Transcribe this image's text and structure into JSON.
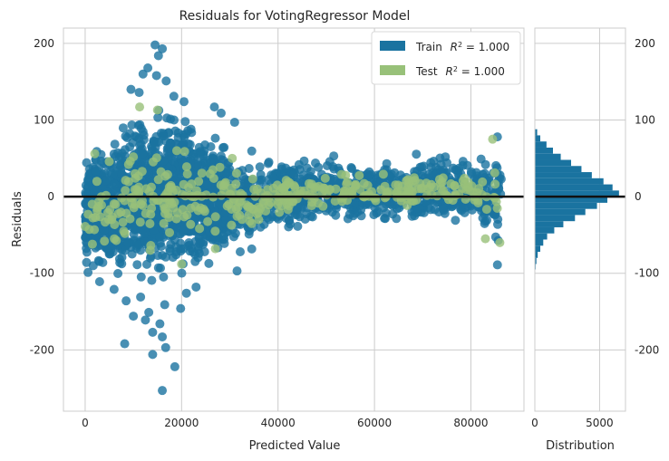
{
  "chart_data": {
    "type": "scatter",
    "title": "Residuals for VotingRegressor Model",
    "xlabel": "Predicted Value",
    "ylabel": "Residuals",
    "xlim": [
      -4500,
      91000
    ],
    "ylim": [
      -280,
      220
    ],
    "xticks": [
      0,
      20000,
      40000,
      60000,
      80000
    ],
    "xtick_labels": [
      "0",
      "20000",
      "40000",
      "60000",
      "80000"
    ],
    "yticks": [
      200,
      100,
      0,
      -100,
      -200
    ],
    "ytick_labels": [
      "200",
      "100",
      "0",
      "-100",
      "-200"
    ],
    "grid": true,
    "legend_position": "top-right",
    "zero_line": 0,
    "colors": {
      "train": "#1a73a0",
      "test": "#98c179",
      "zero_line": "#111111",
      "grid": "#cccccc"
    },
    "legend": [
      {
        "label": "Train",
        "r2_label": "R",
        "r2_sup": "2",
        "r2_value": " = 1.000",
        "color": "#1a73a0"
      },
      {
        "label": "Test",
        "r2_label": "R",
        "r2_sup": "2",
        "r2_value": " = 1.000",
        "color": "#98c179"
      }
    ],
    "series": [
      {
        "name": "Train",
        "color": "#1a73a0",
        "envelope": [
          [
            0,
            -110,
            65
          ],
          [
            5000,
            -120,
            95
          ],
          [
            10000,
            -125,
            130
          ],
          [
            15000,
            -130,
            140
          ],
          [
            20000,
            -120,
            130
          ],
          [
            25000,
            -110,
            100
          ],
          [
            30000,
            -95,
            90
          ],
          [
            35000,
            -80,
            70
          ],
          [
            40000,
            -60,
            65
          ],
          [
            50000,
            -45,
            60
          ],
          [
            60000,
            -45,
            60
          ],
          [
            70000,
            -45,
            60
          ],
          [
            80000,
            -45,
            65
          ],
          [
            86000,
            -90,
            80
          ]
        ],
        "outliers": [
          {
            "x": 14500,
            "y": 198
          },
          {
            "x": 16000,
            "y": 193
          },
          {
            "x": 15200,
            "y": 184
          },
          {
            "x": 13000,
            "y": 168
          },
          {
            "x": 12000,
            "y": 160
          },
          {
            "x": 14800,
            "y": 158
          },
          {
            "x": 16800,
            "y": 151
          },
          {
            "x": 9500,
            "y": 140
          },
          {
            "x": 11200,
            "y": 136
          },
          {
            "x": 18400,
            "y": 131
          },
          {
            "x": 20500,
            "y": 124
          },
          {
            "x": 26800,
            "y": 117
          },
          {
            "x": 28200,
            "y": 109
          },
          {
            "x": 31000,
            "y": 97
          },
          {
            "x": 85500,
            "y": 78
          },
          {
            "x": 8200,
            "y": -192
          },
          {
            "x": 16000,
            "y": -183
          },
          {
            "x": 14000,
            "y": -177
          },
          {
            "x": 15500,
            "y": -166
          },
          {
            "x": 12500,
            "y": -161
          },
          {
            "x": 10000,
            "y": -156
          },
          {
            "x": 13200,
            "y": -151
          },
          {
            "x": 19800,
            "y": -146
          },
          {
            "x": 16500,
            "y": -141
          },
          {
            "x": 8500,
            "y": -136
          },
          {
            "x": 11500,
            "y": -131
          },
          {
            "x": 21000,
            "y": -126
          },
          {
            "x": 14000,
            "y": -206
          },
          {
            "x": 18600,
            "y": -222
          },
          {
            "x": 16700,
            "y": -197
          },
          {
            "x": 16000,
            "y": -253
          },
          {
            "x": 3000,
            "y": -111
          },
          {
            "x": 23000,
            "y": -118
          },
          {
            "x": 6000,
            "y": -121
          },
          {
            "x": 85500,
            "y": -89
          },
          {
            "x": 31500,
            "y": -97
          }
        ]
      },
      {
        "name": "Test",
        "color": "#98c179",
        "scatter": [
          {
            "x": 11300,
            "y": 117
          },
          {
            "x": 15000,
            "y": 113
          },
          {
            "x": 19000,
            "y": 60
          },
          {
            "x": 10000,
            "y": 52
          },
          {
            "x": 30500,
            "y": 50
          },
          {
            "x": 84500,
            "y": 75
          },
          {
            "x": 2000,
            "y": 56
          },
          {
            "x": 9000,
            "y": 42
          },
          {
            "x": 26500,
            "y": 35
          },
          {
            "x": 1500,
            "y": -62
          },
          {
            "x": 4000,
            "y": -58
          },
          {
            "x": 13500,
            "y": -70
          },
          {
            "x": 20000,
            "y": -88
          },
          {
            "x": 8000,
            "y": -45
          },
          {
            "x": 27000,
            "y": -68
          },
          {
            "x": 83000,
            "y": -55
          },
          {
            "x": 86000,
            "y": -60
          },
          {
            "x": 5500,
            "y": -30
          },
          {
            "x": 17500,
            "y": -47
          },
          {
            "x": 36000,
            "y": -30
          }
        ]
      }
    ],
    "distribution": {
      "xlabel": "Distribution",
      "xlim": [
        0,
        7000
      ],
      "xticks": [
        0,
        5000
      ],
      "xtick_labels": [
        "0",
        "5000"
      ],
      "bins": [
        [
          -95,
          -88,
          60
        ],
        [
          -88,
          -80,
          120
        ],
        [
          -80,
          -72,
          220
        ],
        [
          -72,
          -64,
          420
        ],
        [
          -64,
          -56,
          650
        ],
        [
          -56,
          -48,
          950
        ],
        [
          -48,
          -40,
          1500
        ],
        [
          -40,
          -32,
          2200
        ],
        [
          -32,
          -24,
          3100
        ],
        [
          -24,
          -16,
          3900
        ],
        [
          -16,
          -8,
          4800
        ],
        [
          -8,
          0,
          5600
        ],
        [
          0,
          8,
          6500
        ],
        [
          8,
          16,
          6000
        ],
        [
          16,
          24,
          5300
        ],
        [
          24,
          32,
          4400
        ],
        [
          32,
          40,
          3600
        ],
        [
          40,
          48,
          2800
        ],
        [
          48,
          56,
          2000
        ],
        [
          56,
          64,
          1400
        ],
        [
          64,
          72,
          900
        ],
        [
          72,
          80,
          420
        ],
        [
          80,
          88,
          180
        ]
      ]
    }
  }
}
